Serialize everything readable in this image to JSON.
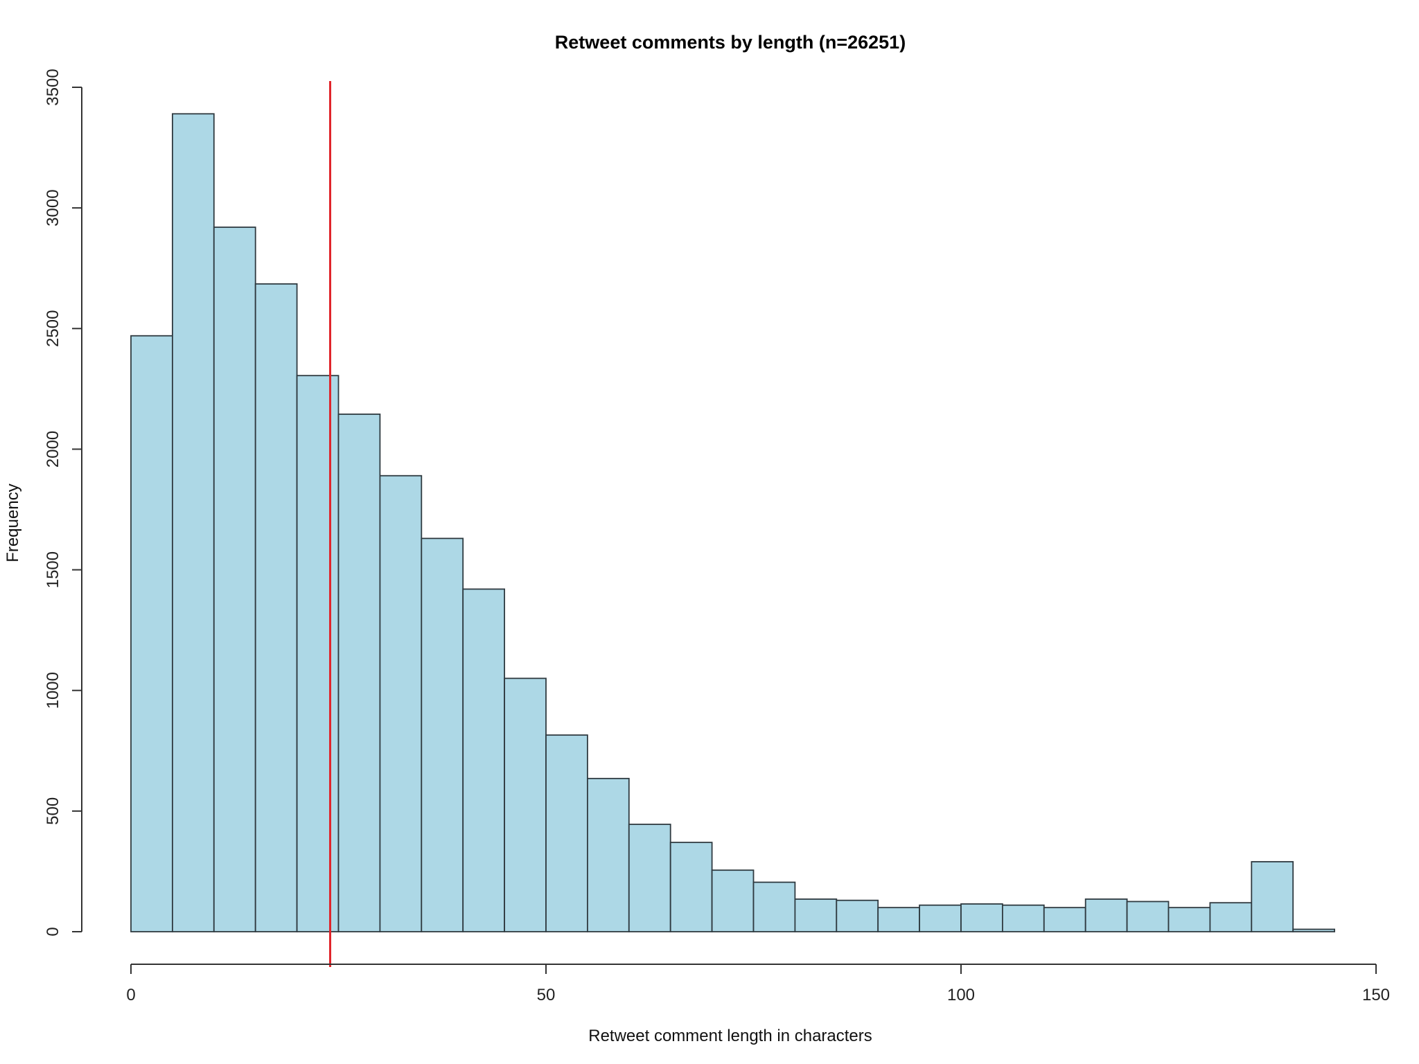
{
  "chart_data": {
    "type": "bar",
    "title": "Retweet comments by length (n=26251)",
    "xlabel": "Retweet comment length in characters",
    "ylabel": "Frequency",
    "xlim": [
      0,
      150
    ],
    "ylim": [
      0,
      3500
    ],
    "x_ticks": [
      "0",
      "50",
      "100",
      "150"
    ],
    "y_ticks": [
      "0",
      "500",
      "1000",
      "1500",
      "2000",
      "2500",
      "3000",
      "3500"
    ],
    "bin_width": 5,
    "bins": [
      {
        "start": 0,
        "end": 5,
        "value": 2470
      },
      {
        "start": 5,
        "end": 10,
        "value": 3390
      },
      {
        "start": 10,
        "end": 15,
        "value": 2920
      },
      {
        "start": 15,
        "end": 20,
        "value": 2685
      },
      {
        "start": 20,
        "end": 25,
        "value": 2305
      },
      {
        "start": 25,
        "end": 30,
        "value": 2145
      },
      {
        "start": 30,
        "end": 35,
        "value": 1890
      },
      {
        "start": 35,
        "end": 40,
        "value": 1630
      },
      {
        "start": 40,
        "end": 45,
        "value": 1420
      },
      {
        "start": 45,
        "end": 50,
        "value": 1050
      },
      {
        "start": 50,
        "end": 55,
        "value": 815
      },
      {
        "start": 55,
        "end": 60,
        "value": 635
      },
      {
        "start": 60,
        "end": 65,
        "value": 445
      },
      {
        "start": 65,
        "end": 70,
        "value": 370
      },
      {
        "start": 70,
        "end": 75,
        "value": 255
      },
      {
        "start": 75,
        "end": 80,
        "value": 205
      },
      {
        "start": 80,
        "end": 85,
        "value": 135
      },
      {
        "start": 85,
        "end": 90,
        "value": 130
      },
      {
        "start": 90,
        "end": 95,
        "value": 100
      },
      {
        "start": 95,
        "end": 100,
        "value": 110
      },
      {
        "start": 100,
        "end": 105,
        "value": 115
      },
      {
        "start": 105,
        "end": 110,
        "value": 110
      },
      {
        "start": 110,
        "end": 115,
        "value": 100
      },
      {
        "start": 115,
        "end": 120,
        "value": 135
      },
      {
        "start": 120,
        "end": 125,
        "value": 125
      },
      {
        "start": 125,
        "end": 130,
        "value": 100
      },
      {
        "start": 130,
        "end": 135,
        "value": 120
      },
      {
        "start": 135,
        "end": 140,
        "value": 290
      },
      {
        "start": 140,
        "end": 145,
        "value": 10
      }
    ],
    "reference_line": {
      "x": 24,
      "color": "#e0242a"
    },
    "bar_color": "#add8e6",
    "grid": false,
    "legend": "none"
  }
}
